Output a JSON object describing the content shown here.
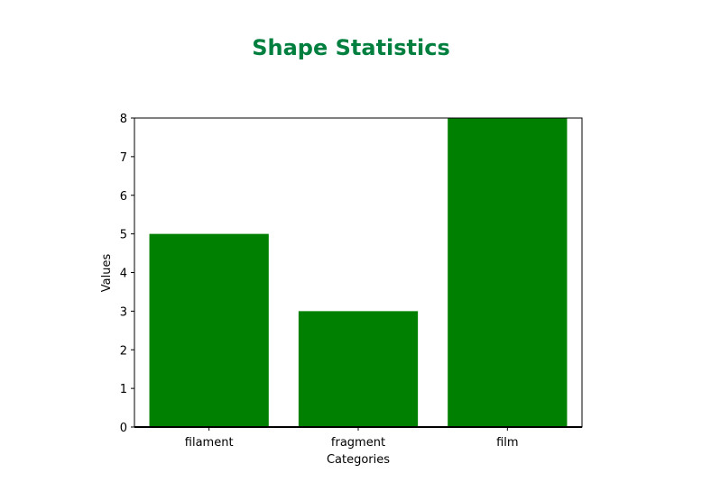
{
  "chart_data": {
    "type": "bar",
    "title": "Shape Statistics",
    "xlabel": "Categories",
    "ylabel": "Values",
    "categories": [
      "filament",
      "fragment",
      "film"
    ],
    "values": [
      5,
      3,
      8
    ],
    "ylim": [
      0,
      8
    ],
    "yticks": [
      "0",
      "1",
      "2",
      "3",
      "4",
      "5",
      "6",
      "7",
      "8"
    ],
    "grid": false,
    "legend": "none"
  },
  "colors": {
    "bar": "#008000",
    "title": "#007f3f",
    "axis": "#000000"
  }
}
